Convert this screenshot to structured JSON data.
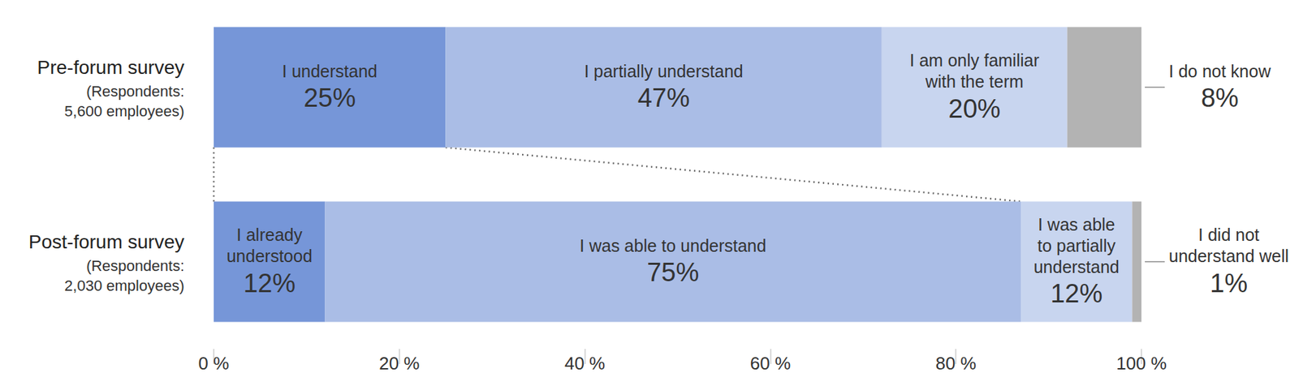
{
  "chart_data": {
    "type": "bar",
    "orientation": "horizontal",
    "stacked": true,
    "data_labels": true,
    "grid": false,
    "categories": [
      "Pre-forum survey",
      "Post-forum survey"
    ],
    "respondents": [
      "(Respondents:\n5,600 employees)",
      "(Respondents:\n2,030 employees)"
    ],
    "xlim": [
      0,
      100
    ],
    "xticks": [
      {
        "value": 0,
        "label": "0 %"
      },
      {
        "value": 20,
        "label": "20 %"
      },
      {
        "value": 40,
        "label": "40 %"
      },
      {
        "value": 60,
        "label": "60 %"
      },
      {
        "value": 80,
        "label": "80 %"
      },
      {
        "value": 100,
        "label": "100 %"
      }
    ],
    "series": [
      {
        "name": "I understand",
        "color": "#7696d8",
        "values": [
          25,
          null
        ],
        "value_labels": [
          "25%",
          null
        ]
      },
      {
        "name": "I partially understand",
        "color": "#aabde6",
        "values": [
          47,
          null
        ],
        "value_labels": [
          "47%",
          null
        ]
      },
      {
        "name": "I am only familiar\nwith the term",
        "color": "#c8d5ef",
        "values": [
          20,
          null
        ],
        "value_labels": [
          "20%",
          null
        ]
      },
      {
        "name": "I do not know",
        "color": "#b3b3b3",
        "values": [
          8,
          null
        ],
        "value_labels": [
          "8%",
          null
        ]
      },
      {
        "name": "I already\nunderstood",
        "color": "#7696d8",
        "values": [
          null,
          12
        ],
        "value_labels": [
          null,
          "12%"
        ]
      },
      {
        "name": "I was able to understand",
        "color": "#aabde6",
        "values": [
          null,
          75
        ],
        "value_labels": [
          null,
          "75%"
        ]
      },
      {
        "name": "I was able\nto partially\nunderstand",
        "color": "#c8d5ef",
        "values": [
          null,
          12
        ],
        "value_labels": [
          null,
          "12%"
        ]
      },
      {
        "name": "I did not\nunderstand well",
        "color": "#b3b3b3",
        "values": [
          null,
          1
        ],
        "value_labels": [
          null,
          "1%"
        ]
      }
    ]
  }
}
